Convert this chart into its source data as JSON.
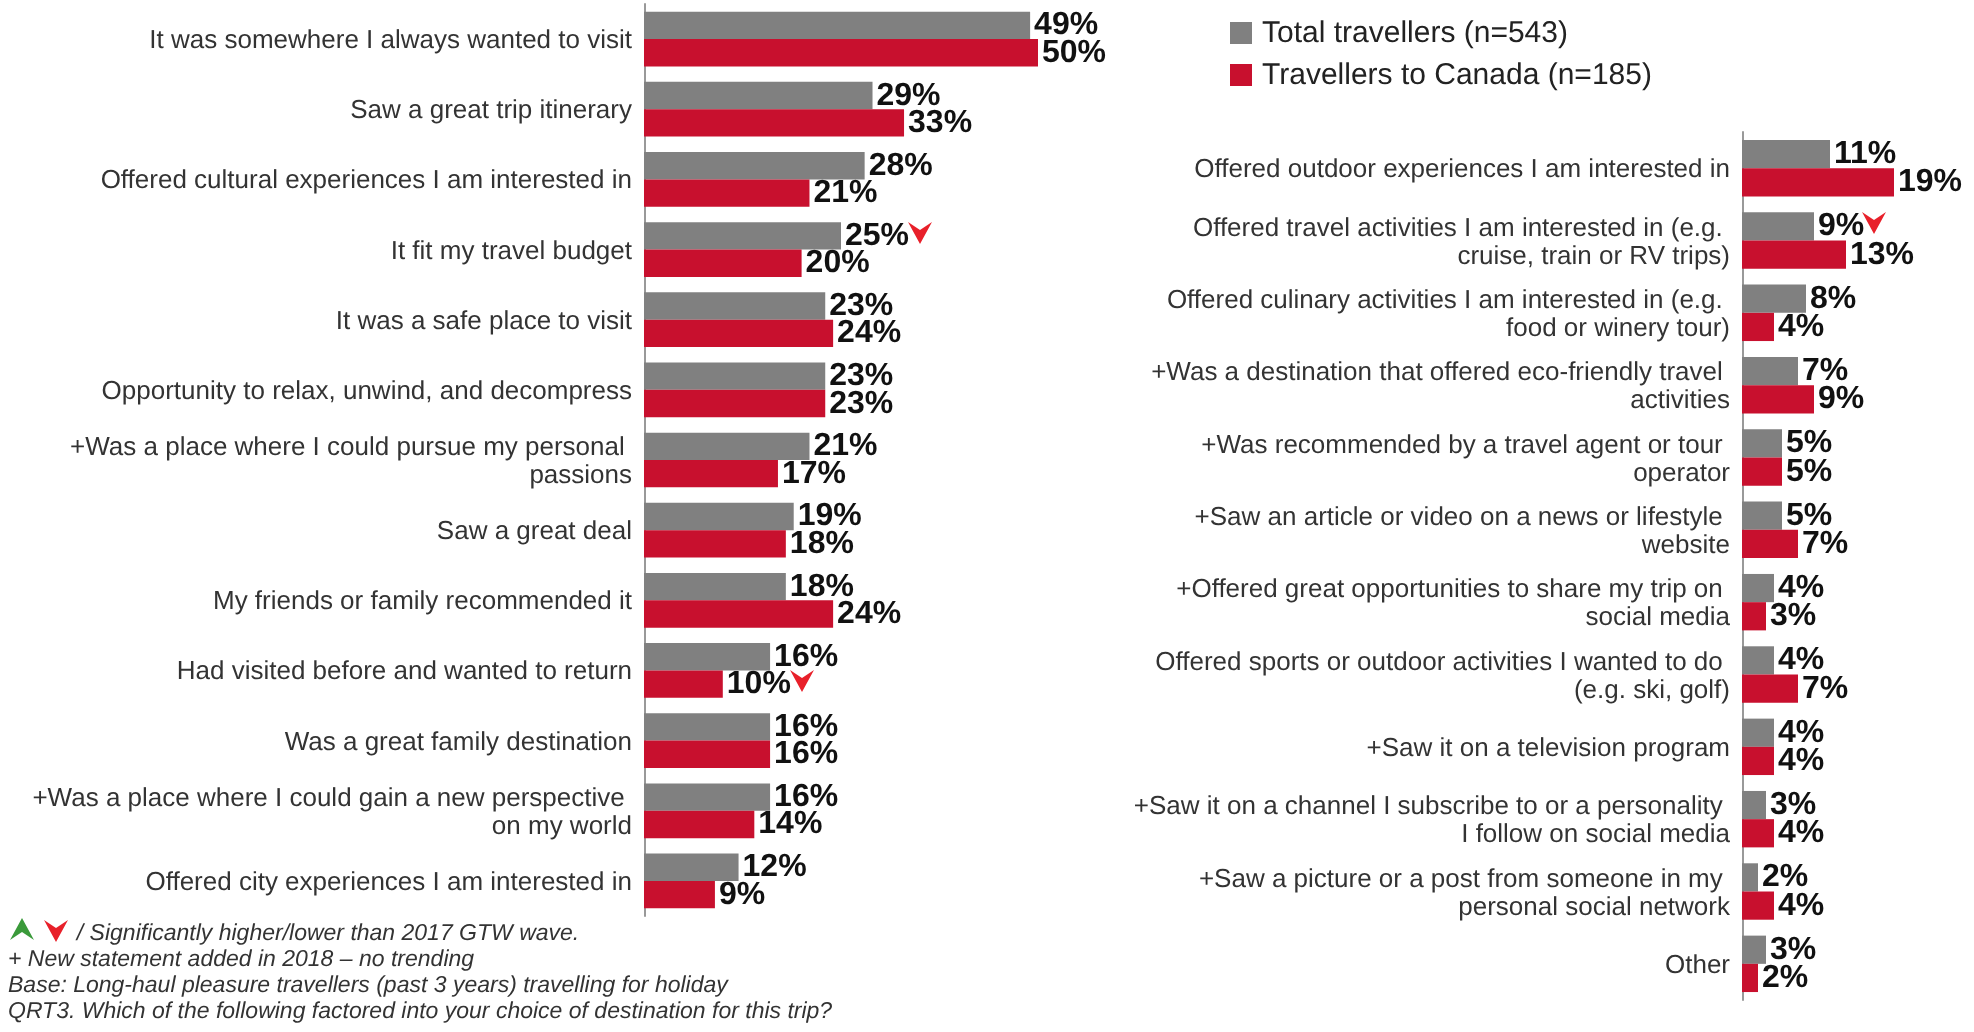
{
  "chart_data": [
    {
      "type": "bar",
      "orientation": "horizontal",
      "legend": false,
      "categories": [
        "It was somewhere I always wanted to visit",
        "Saw a great trip itinerary",
        "Offered cultural experiences I am interested in",
        "It fit my travel budget",
        "It was a safe place to visit",
        "Opportunity to relax, unwind, and decompress",
        "+Was a place where I could pursue my personal passions",
        "Saw a great deal",
        "My friends or family recommended it",
        "Had visited before and wanted to return",
        "Was a great family destination",
        "+Was a place where I could gain a new perspective on my world",
        "Offered city experiences I am interested in"
      ],
      "series": [
        {
          "color": "#808080",
          "values": [
            49,
            29,
            28,
            25,
            23,
            23,
            21,
            19,
            18,
            16,
            16,
            16,
            12
          ],
          "value_labels": [
            "49%",
            "29%",
            "28%",
            "25%",
            "23%",
            "23%",
            "21%",
            "19%",
            "18%",
            "16%",
            "16%",
            "16%",
            "12%"
          ]
        },
        {
          "color": "#c8102e",
          "values": [
            50,
            33,
            21,
            20,
            24,
            23,
            17,
            18,
            24,
            10,
            16,
            14,
            9
          ],
          "value_labels": [
            "50%",
            "33%",
            "21%",
            "20%",
            "24%",
            "23%",
            "17%",
            "18%",
            "24%",
            "10%",
            "16%",
            "14%",
            "9%"
          ]
        }
      ],
      "annotations": [
        "/ Significantly higher/lower than 2017 GTW wave.",
        "+ New statement added in 2018 – no trending",
        "Base: Long-haul pleasure travellers (past 3 years) travelling for holiday",
        "QRT3. Which of the following factored into your choice of destination for this trip?"
      ]
    },
    {
      "type": "bar",
      "orientation": "horizontal",
      "legend": "top",
      "categories": [
        "Offered outdoor experiences I am interested in",
        "Offered travel activities I am interested in (e.g. cruise, train or RV trips)",
        "Offered culinary activities I am interested in (e.g. food or winery tour)",
        "+Was a destination that offered eco-friendly travel activities",
        "+Was recommended by a travel agent or tour operator",
        "+Saw an article or video on a news or lifestyle website",
        "+Offered great opportunities to share my trip on social media",
        "Offered sports or outdoor activities I wanted to do (e.g. ski, golf)",
        "+Saw it on a television program",
        "+Saw it on a channel I subscribe to or a personality I follow on social media",
        "+Saw a picture or a post from someone in my personal social network",
        "Other"
      ],
      "series": [
        {
          "name": "Total travellers (n=543)",
          "color": "#808080",
          "values": [
            11,
            9,
            8,
            7,
            5,
            5,
            4,
            4,
            4,
            3,
            2,
            3
          ],
          "value_labels": [
            "11%",
            "9%",
            "8%",
            "7%",
            "5%",
            "5%",
            "4%",
            "4%",
            "4%",
            "3%",
            "2%",
            "3%"
          ]
        },
        {
          "name": "Travellers to Canada (n=185)",
          "color": "#c8102e",
          "values": [
            19,
            13,
            4,
            9,
            5,
            7,
            3,
            7,
            4,
            4,
            4,
            2
          ],
          "value_labels": [
            "19%",
            "13%",
            "4%",
            "9%",
            "5%",
            "7%",
            "3%",
            "7%",
            "4%",
            "4%",
            "4%",
            "2%"
          ]
        }
      ]
    }
  ]
}
